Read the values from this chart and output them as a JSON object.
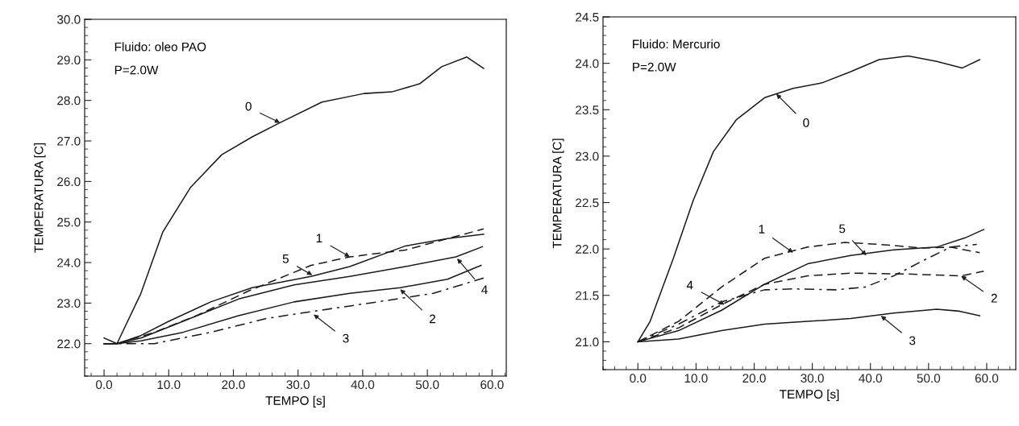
{
  "chart_data": [
    {
      "type": "line",
      "xlabel": "TEMPO [s]",
      "ylabel": "TEMPERATURA [C]",
      "xlim": [
        -3,
        62.2
      ],
      "ylim": [
        21.2,
        30.0
      ],
      "xticks": [
        {
          "value": 0,
          "label": "0.0"
        },
        {
          "value": 10,
          "label": "10.0"
        },
        {
          "value": 20,
          "label": "20.0"
        },
        {
          "value": 30,
          "label": "30.0"
        },
        {
          "value": 40,
          "label": "40.0"
        },
        {
          "value": 50,
          "label": "50.0"
        },
        {
          "value": 60,
          "label": "60.0"
        }
      ],
      "yticks": [
        {
          "value": 22,
          "label": "22.0"
        },
        {
          "value": 23,
          "label": "23.0"
        },
        {
          "value": 24,
          "label": "24.0"
        },
        {
          "value": 25,
          "label": "25.0"
        },
        {
          "value": 26,
          "label": "26.0"
        },
        {
          "value": 27,
          "label": "27.0"
        },
        {
          "value": 28,
          "label": "28.0"
        },
        {
          "value": 29,
          "label": "29.0"
        },
        {
          "value": 30,
          "label": "30.0"
        }
      ],
      "grid": false,
      "legend": false,
      "series": [
        {
          "color": "#1a1a1a",
          "line_style": "solid",
          "x": [
            0,
            2,
            5.7,
            9.1,
            13.4,
            18.2,
            22.9,
            27.2,
            33.7,
            40.2,
            44.5,
            48.8,
            52.2,
            56.1,
            58.7
          ],
          "values": [
            22.14,
            22.0,
            23.24,
            24.76,
            25.86,
            26.66,
            27.1,
            27.45,
            27.96,
            28.17,
            28.21,
            28.41,
            28.83,
            29.07,
            28.79
          ]
        },
        {
          "color": "#1a1a1a",
          "line_style": "dashed",
          "x": [
            0,
            2,
            7.8,
            14.3,
            22.5,
            32,
            38,
            46.6,
            53.1,
            58.7
          ],
          "values": [
            22.0,
            22.0,
            22.28,
            22.69,
            23.31,
            23.93,
            24.14,
            24.31,
            24.59,
            24.83
          ]
        },
        {
          "color": "#1a1a1a",
          "line_style": "solid",
          "x": [
            0,
            2,
            5.7,
            12.2,
            20.8,
            29.4,
            38,
            45.8,
            53.1,
            58.3
          ],
          "values": [
            22.0,
            22.0,
            22.07,
            22.28,
            22.69,
            23.03,
            23.24,
            23.38,
            23.59,
            23.93
          ]
        },
        {
          "color": "#1a1a1a",
          "line_style": "dashdot",
          "x": [
            0,
            2,
            7.8,
            16.5,
            25.1,
            33.7,
            42.3,
            50.9,
            58.7
          ],
          "values": [
            22.0,
            22.0,
            22.0,
            22.28,
            22.62,
            22.83,
            23.03,
            23.24,
            23.62
          ]
        },
        {
          "color": "#1a1a1a",
          "line_style": "solid",
          "x": [
            0,
            2,
            5.7,
            12.2,
            20.8,
            29.4,
            38,
            46.6,
            54.4,
            58.5
          ],
          "values": [
            22.0,
            22.0,
            22.14,
            22.55,
            23.1,
            23.45,
            23.66,
            23.9,
            24.14,
            24.39
          ]
        },
        {
          "color": "#1a1a1a",
          "line_style": "solid",
          "x": [
            0,
            2,
            5.7,
            10,
            16.5,
            22.9,
            32,
            38,
            46.6,
            53.1,
            58.7
          ],
          "values": [
            22.0,
            22.0,
            22.2,
            22.55,
            23.03,
            23.38,
            23.66,
            23.9,
            24.41,
            24.59,
            24.7
          ]
        }
      ],
      "annotations": [
        "Fluido: oleo PAO",
        "P=2.0W",
        {
          "text": "0",
          "x": 27.2,
          "y": 27.45
        },
        {
          "text": "1",
          "x": 38,
          "y": 24.14
        },
        {
          "text": "5",
          "x": 32.2,
          "y": 23.69
        },
        {
          "text": "4",
          "x": 54.6,
          "y": 24.1
        },
        {
          "text": "2",
          "x": 45.8,
          "y": 23.34
        },
        {
          "text": "3",
          "x": 32.4,
          "y": 22.72
        }
      ]
    },
    {
      "type": "line",
      "xlabel": "TEMPO [s]",
      "ylabel": "TEMPERATURA [C]",
      "xlim": [
        -6,
        65
      ],
      "ylim": [
        20.7,
        24.5
      ],
      "xticks": [
        {
          "value": 0,
          "label": "0.0"
        },
        {
          "value": 10,
          "label": "10.0"
        },
        {
          "value": 20,
          "label": "20.0"
        },
        {
          "value": 30,
          "label": "30.0"
        },
        {
          "value": 40,
          "label": "40.0"
        },
        {
          "value": 50,
          "label": "50.0"
        },
        {
          "value": 60,
          "label": "60.0"
        }
      ],
      "yticks": [
        {
          "value": 21,
          "label": "21.0"
        },
        21.5,
        {
          "value": 22,
          "label": "22.0"
        },
        22.5,
        {
          "value": 23,
          "label": "23.0"
        },
        23.5,
        {
          "value": 24,
          "label": "24.0"
        },
        24.5
      ],
      "grid": false,
      "legend": false,
      "series": [
        {
          "color": "#1a1a1a",
          "line_style": "solid",
          "x": [
            0,
            2.1,
            6.1,
            9.5,
            13,
            16.9,
            21.8,
            26.7,
            31.7,
            36.6,
            41.5,
            46.5,
            51.4,
            55.8,
            58.8
          ],
          "values": [
            21.0,
            21.22,
            21.9,
            22.52,
            23.05,
            23.39,
            23.63,
            23.73,
            23.79,
            23.91,
            24.04,
            24.08,
            24.02,
            23.95,
            24.04
          ]
        },
        {
          "color": "#1a1a1a",
          "line_style": "dashed",
          "x": [
            0,
            7,
            14.4,
            21.8,
            29.2,
            35.6,
            41.5,
            48.9,
            53.8,
            58.8
          ],
          "values": [
            21.0,
            21.22,
            21.59,
            21.9,
            22.02,
            22.07,
            22.05,
            22.01,
            22.02,
            21.96
          ]
        },
        {
          "color": "#1a1a1a",
          "line_style": "dashed",
          "x": [
            0,
            7,
            14.4,
            21.8,
            29.2,
            36.6,
            46.5,
            55.6,
            59.5
          ],
          "values": [
            21.0,
            21.15,
            21.4,
            21.62,
            21.71,
            21.74,
            21.73,
            21.71,
            21.76
          ]
        },
        {
          "color": "#1a1a1a",
          "line_style": "solid",
          "x": [
            0,
            7,
            14.4,
            21.8,
            29.2,
            36.6,
            44,
            51.4,
            55.3,
            58.8
          ],
          "values": [
            21.0,
            21.03,
            21.12,
            21.19,
            21.22,
            21.25,
            21.31,
            21.35,
            21.33,
            21.28
          ]
        },
        {
          "color": "#1a1a1a",
          "line_style": "dashdot",
          "x": [
            0,
            7,
            14.4,
            21.8,
            26.7,
            34.1,
            39.1,
            44,
            48.9,
            53.8,
            58.3
          ],
          "values": [
            21.0,
            21.19,
            21.43,
            21.56,
            21.57,
            21.56,
            21.59,
            21.71,
            21.87,
            22.02,
            22.05
          ]
        },
        {
          "color": "#1a1a1a",
          "line_style": "solid",
          "x": [
            0,
            7,
            14.4,
            21.8,
            29.2,
            36.6,
            44,
            51.4,
            56.3,
            59.5
          ],
          "values": [
            21.0,
            21.12,
            21.34,
            21.62,
            21.84,
            21.93,
            21.99,
            22.02,
            22.12,
            22.21
          ]
        }
      ],
      "annotations": [
        "Fluido: Mercurio",
        "P=2.0W",
        {
          "text": "0",
          "x": 23.8,
          "y": 23.67
        },
        {
          "text": "1",
          "x": 26.7,
          "y": 21.96
        },
        {
          "text": "5",
          "x": 39.3,
          "y": 21.93
        },
        {
          "text": "4",
          "x": 14.9,
          "y": 21.4
        },
        {
          "text": "2",
          "x": 55.6,
          "y": 21.71
        },
        {
          "text": "3",
          "x": 41.8,
          "y": 21.28
        }
      ]
    }
  ]
}
